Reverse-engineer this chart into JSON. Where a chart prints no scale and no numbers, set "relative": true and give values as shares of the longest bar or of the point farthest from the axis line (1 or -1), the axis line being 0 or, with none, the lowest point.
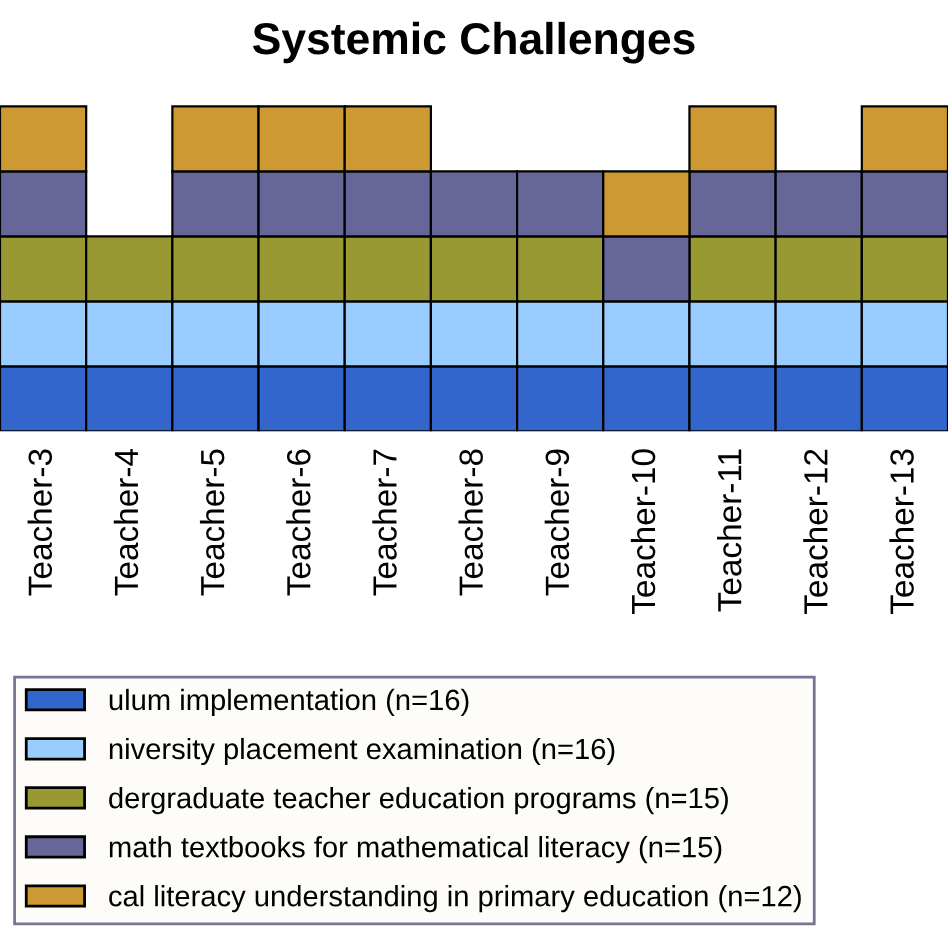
{
  "chart_data": {
    "type": "bar",
    "title": "Systemic Challenges",
    "stacked": true,
    "relative": true,
    "legend": "bottom",
    "categories": [
      "Teacher-3",
      "Teacher-4",
      "Teacher-5",
      "Teacher-6",
      "Teacher-7",
      "Teacher-8",
      "Teacher-9",
      "Teacher-10",
      "Teacher-11",
      "Teacher-12",
      "Teacher-13"
    ],
    "series": [
      {
        "name": "ulum implementation (n=16)",
        "color": "#3366cc",
        "values": [
          0.2,
          0.2,
          0.2,
          0.2,
          0.2,
          0.2,
          0.2,
          0.2,
          0.2,
          0.2,
          0.2
        ]
      },
      {
        "name": "niversity placement examination (n=16)",
        "color": "#99ccff",
        "values": [
          0.2,
          0.2,
          0.2,
          0.2,
          0.2,
          0.2,
          0.2,
          0.2,
          0.2,
          0.2,
          0.2
        ]
      },
      {
        "name": "dergraduate teacher education programs (n=15)",
        "color": "#999933",
        "values": [
          0.2,
          0.2,
          0.2,
          0.2,
          0.2,
          0.2,
          0.2,
          null,
          0.2,
          0.2,
          0.2
        ]
      },
      {
        "name": "math textbooks for mathematical literacy (n=15)",
        "color": "#666699",
        "values": [
          0.2,
          null,
          0.2,
          0.2,
          0.2,
          0.2,
          0.2,
          0.2,
          0.2,
          0.2,
          0.2
        ]
      },
      {
        "name": "cal literacy understanding in primary education (n=12)",
        "color": "#cc9933",
        "values": [
          0.2,
          null,
          0.2,
          0.2,
          0.2,
          null,
          null,
          0.2,
          0.2,
          null,
          0.2
        ]
      }
    ]
  }
}
